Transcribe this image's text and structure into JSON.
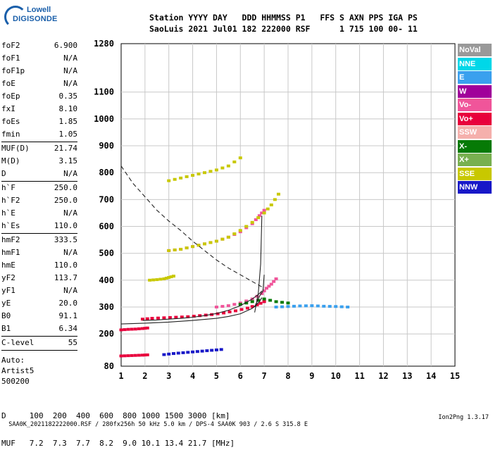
{
  "logo": {
    "line1": "Lowell",
    "line2": "DIGISONDE"
  },
  "header": {
    "line1": "Station YYYY DAY   DDD HHMMSS P1   FFS S AXN PPS IGA PS",
    "line2": "SaoLuis 2021 Jul01 182 222000 RSF      1 715 100 00- 11"
  },
  "params_group1": [
    {
      "k": "foF2",
      "v": "6.900"
    },
    {
      "k": "foF1",
      "v": "N/A"
    },
    {
      "k": "foF1p",
      "v": "N/A"
    },
    {
      "k": "foE",
      "v": "N/A"
    },
    {
      "k": "foEp",
      "v": "0.35"
    },
    {
      "k": "fxI",
      "v": "8.10"
    },
    {
      "k": "foEs",
      "v": "1.85"
    },
    {
      "k": "fmin",
      "v": "1.05"
    }
  ],
  "params_group2": [
    {
      "k": "MUF(D)",
      "v": "21.74"
    },
    {
      "k": "M(D)",
      "v": "3.15"
    },
    {
      "k": "D",
      "v": "N/A"
    }
  ],
  "params_group3": [
    {
      "k": "h`F",
      "v": "250.0"
    },
    {
      "k": "h`F2",
      "v": "250.0"
    },
    {
      "k": "h`E",
      "v": "N/A"
    },
    {
      "k": "h`Es",
      "v": "110.0"
    }
  ],
  "params_group4": [
    {
      "k": "hmF2",
      "v": "333.5"
    },
    {
      "k": "hmF1",
      "v": "N/A"
    },
    {
      "k": "hmE",
      "v": "110.0"
    },
    {
      "k": "yF2",
      "v": "113.7"
    },
    {
      "k": "yF1",
      "v": "N/A"
    },
    {
      "k": "yE",
      "v": "20.0"
    },
    {
      "k": "B0",
      "v": "91.1"
    },
    {
      "k": "B1",
      "v": "6.34"
    }
  ],
  "params_group5": [
    {
      "k": "C-level",
      "v": "55"
    }
  ],
  "auto": [
    "Auto:",
    "Artist5",
    "500200"
  ],
  "legend": [
    {
      "label": "NoVal",
      "color": "#999999"
    },
    {
      "label": "NNE",
      "color": "#00d7e8"
    },
    {
      "label": "E",
      "color": "#3aa0ee"
    },
    {
      "label": "W",
      "color": "#a0009a"
    },
    {
      "label": "Vo-",
      "color": "#f0559a"
    },
    {
      "label": "Vo+",
      "color": "#e8003c"
    },
    {
      "label": "SSW",
      "color": "#f5b0ac"
    },
    {
      "label": "X-",
      "color": "#067a06"
    },
    {
      "label": "X+",
      "color": "#78b050"
    },
    {
      "label": "SSE",
      "color": "#c8c800"
    },
    {
      "label": "NNW",
      "color": "#1818c8"
    }
  ],
  "bottom": {
    "d_row": "D     100  200  400  600  800 1000 1500 3000 [km]",
    "muf_row": "MUF   7.2  7.3  7.7  8.2  9.0 10.1 13.4 21.7 [MHz]"
  },
  "footer": {
    "left": "SAA0K_2021182222000.RSF / 280fx256h 50 kHz 5.0 km / DPS-4 SAA0K 903 / 2.6 S 315.8 E",
    "right": "Ion2Png 1.3.17"
  },
  "chart_data": {
    "type": "scatter",
    "title": "",
    "xlabel": "",
    "ylabel": "",
    "xlim": [
      1,
      15
    ],
    "ylim": [
      80,
      1280
    ],
    "x_ticks": [
      1,
      2,
      3,
      4,
      5,
      6,
      7,
      8,
      9,
      10,
      11,
      12,
      13,
      14,
      15
    ],
    "y_ticks": [
      80,
      200,
      300,
      400,
      500,
      600,
      700,
      800,
      900,
      1000,
      1100,
      1280
    ],
    "grid": true,
    "traces": [
      {
        "name": "",
        "color_key": "Vo+",
        "x": [
          1.9,
          2.3,
          2.8,
          3.3,
          3.8,
          4.3,
          4.8,
          5.3,
          5.8,
          6.3,
          6.7,
          7.0
        ],
        "y": [
          255,
          258,
          260,
          262,
          264,
          268,
          272,
          278,
          286,
          296,
          308,
          320
        ]
      },
      {
        "name": "",
        "color_key": "Vo-",
        "x": [
          5.0,
          5.5,
          6.0,
          6.5,
          6.9,
          7.1,
          7.3,
          7.5
        ],
        "y": [
          300,
          305,
          315,
          330,
          350,
          370,
          385,
          405
        ]
      },
      {
        "name": "",
        "color_key": "Vo-",
        "x": [
          3.0,
          3.5,
          4.0,
          4.5,
          5.0,
          5.5,
          6.0,
          6.5,
          6.8,
          7.0
        ],
        "y": [
          510,
          515,
          525,
          535,
          545,
          560,
          580,
          610,
          640,
          660
        ]
      },
      {
        "name": "",
        "color_key": "SSE",
        "x": [
          3.0,
          3.5,
          4.0,
          4.5,
          5.0,
          5.5,
          6.0,
          6.5,
          7.0,
          7.3,
          7.6
        ],
        "y": [
          510,
          515,
          525,
          535,
          545,
          560,
          585,
          615,
          650,
          680,
          720
        ]
      },
      {
        "name": "",
        "color_key": "SSE",
        "x": [
          3.0,
          3.5,
          4.0,
          4.5,
          5.0,
          5.5,
          6.0
        ],
        "y": [
          770,
          780,
          790,
          800,
          810,
          825,
          855
        ]
      },
      {
        "name": "",
        "color_key": "SSE",
        "x": [
          2.2,
          2.5,
          2.8,
          3.0,
          3.2
        ],
        "y": [
          400,
          402,
          405,
          410,
          415
        ]
      },
      {
        "name": "",
        "color_key": "Vo+",
        "x": [
          1.0,
          1.3,
          1.6,
          1.9,
          2.1
        ],
        "y": [
          215,
          217,
          218,
          220,
          222
        ]
      },
      {
        "name": "",
        "color_key": "Vo+",
        "x": [
          1.0,
          1.3,
          1.6,
          1.9,
          2.1
        ],
        "y": [
          118,
          119,
          120,
          121,
          122
        ]
      },
      {
        "name": "",
        "color_key": "NNW",
        "x": [
          2.8,
          3.2,
          3.6,
          4.0,
          4.4,
          4.8,
          5.2
        ],
        "y": [
          123,
          127,
          130,
          133,
          136,
          139,
          142
        ]
      },
      {
        "name": "",
        "color_key": "E",
        "x": [
          7.5,
          8.0,
          8.5,
          9.0,
          9.5,
          10.0,
          10.5
        ],
        "y": [
          300,
          302,
          304,
          305,
          303,
          302,
          300
        ]
      },
      {
        "name": "",
        "color_key": "X-",
        "x": [
          6.0,
          6.5,
          7.0,
          7.5,
          8.0
        ],
        "y": [
          310,
          320,
          330,
          320,
          315
        ]
      }
    ],
    "fit_curves": [
      {
        "name": "",
        "style": "solid",
        "x": [
          1.9,
          2.5,
          3.0,
          3.5,
          4.0,
          4.5,
          5.0,
          5.5,
          6.0,
          6.5,
          6.8,
          6.9
        ],
        "y": [
          250,
          252,
          255,
          258,
          262,
          268,
          276,
          288,
          305,
          330,
          350,
          360
        ]
      },
      {
        "name": "",
        "style": "solid",
        "x": [
          1.0,
          2.0,
          3.0,
          4.0,
          5.0,
          5.5,
          6.0,
          6.5,
          6.8,
          6.9
        ],
        "y": [
          237,
          240,
          244,
          250,
          258,
          265,
          275,
          295,
          320,
          335
        ]
      },
      {
        "name": "",
        "style": "solid",
        "x": [
          6.6,
          6.75,
          6.85,
          6.9
        ],
        "y": [
          280,
          350,
          460,
          640
        ]
      },
      {
        "name": "",
        "style": "solid",
        "x": [
          6.6,
          6.8,
          6.95,
          7.0
        ],
        "y": [
          300,
          340,
          360,
          420
        ]
      },
      {
        "name": "",
        "style": "dashed",
        "x": [
          1.0,
          1.5,
          2.0,
          2.5,
          3.0,
          3.5,
          4.0,
          4.5,
          5.0,
          5.5,
          6.0,
          6.5,
          6.9
        ],
        "y": [
          825,
          760,
          710,
          660,
          620,
          585,
          545,
          510,
          475,
          445,
          420,
          395,
          375
        ]
      }
    ]
  }
}
